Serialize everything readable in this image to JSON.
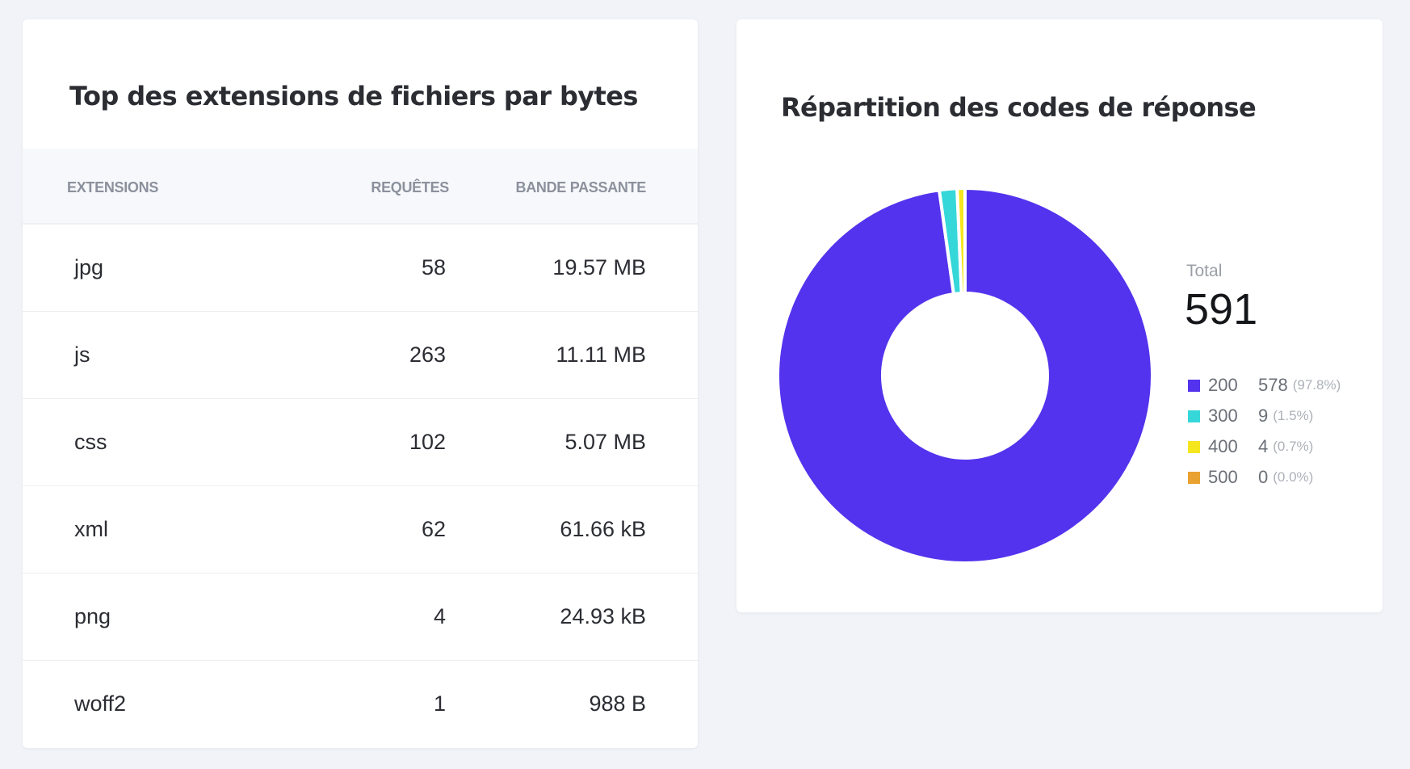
{
  "extensions_card": {
    "title": "Top des extensions de fichiers par bytes",
    "columns": [
      "EXTENSIONS",
      "REQUÊTES",
      "BANDE PASSANTE"
    ],
    "rows": [
      {
        "ext": "jpg",
        "requests": "58",
        "bandwidth": "19.57 MB"
      },
      {
        "ext": "js",
        "requests": "263",
        "bandwidth": "11.11 MB"
      },
      {
        "ext": "css",
        "requests": "102",
        "bandwidth": "5.07 MB"
      },
      {
        "ext": "xml",
        "requests": "62",
        "bandwidth": "61.66 kB"
      },
      {
        "ext": "png",
        "requests": "4",
        "bandwidth": "24.93 kB"
      },
      {
        "ext": "woff2",
        "requests": "1",
        "bandwidth": "988 B"
      }
    ]
  },
  "response_card": {
    "title": "Répartition des codes de réponse",
    "total_label": "Total",
    "total_value": "591",
    "legend": [
      {
        "code": "200",
        "count": "578",
        "pct": "(97.8%)",
        "color": "#5333ed"
      },
      {
        "code": "300",
        "count": "9",
        "pct": "(1.5%)",
        "color": "#36d7d9"
      },
      {
        "code": "400",
        "count": "4",
        "pct": "(0.7%)",
        "color": "#f5e61e"
      },
      {
        "code": "500",
        "count": "0",
        "pct": "(0.0%)",
        "color": "#e9a22f"
      }
    ]
  },
  "chart_data": {
    "type": "pie",
    "variant": "donut",
    "categories": [
      "200",
      "300",
      "400",
      "500"
    ],
    "values": [
      578,
      9,
      4,
      0
    ],
    "colors": [
      "#5333ed",
      "#36d7d9",
      "#f5e61e",
      "#e9a22f"
    ],
    "legend_position": "right"
  }
}
